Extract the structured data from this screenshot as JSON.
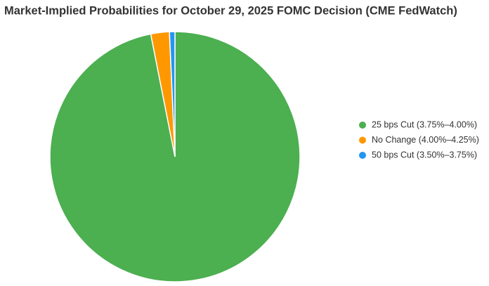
{
  "chart_data": {
    "type": "pie",
    "title": "Market-Implied Probabilities for October 29, 2025 FOMC Decision (CME FedWatch)",
    "categories": [
      "25 bps Cut (3.75%–4.00%)",
      "No Change (4.00%–4.25%)",
      "50 bps Cut (3.50%–3.75%)"
    ],
    "values": [
      96.9,
      2.4,
      0.7
    ],
    "colors": [
      "#4caf50",
      "#ff9800",
      "#2196f3"
    ],
    "legend": "right"
  }
}
